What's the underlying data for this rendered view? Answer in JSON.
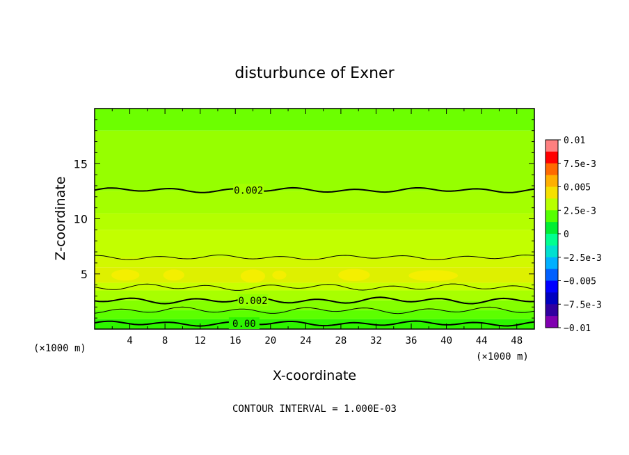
{
  "chart_data": {
    "type": "contour",
    "title": "disturbunce of Exner",
    "xlabel": "X-coordinate",
    "ylabel": "Z-coordinate",
    "x_unit": "(×1000 m)",
    "x_unit_right": "(×1000 m)",
    "xlim": [
      0,
      50
    ],
    "ylim": [
      0,
      20
    ],
    "x_ticks": [
      "4",
      "8",
      "12",
      "16",
      "20",
      "24",
      "28",
      "32",
      "36",
      "40",
      "44",
      "48"
    ],
    "y_ticks": [
      "5",
      "10",
      "15"
    ],
    "colorbar": {
      "labels": [
        "0.01",
        "7.5e-3",
        "0.005",
        "2.5e-3",
        "0",
        "−2.5e-3",
        "−0.005",
        "−7.5e-3",
        "−0.01"
      ],
      "colors": [
        "#ff8080",
        "#ff0000",
        "#ff6a00",
        "#ffb000",
        "#f5e000",
        "#b8ff00",
        "#55ff00",
        "#00ee33",
        "#00ff90",
        "#00e0d0",
        "#00b0ff",
        "#0060ff",
        "#0000ff",
        "#0000c0",
        "#3000a0",
        "#8000b0"
      ]
    },
    "contour_labels": [
      "0.002",
      "0.002",
      "0.00"
    ],
    "contour_interval_text": "CONTOUR INTERVAL = 1.000E-03",
    "bands": [
      {
        "z_bottom": 18,
        "z_top": 20,
        "color": "#6cff00"
      },
      {
        "z_bottom": 12.5,
        "z_top": 18,
        "color": "#96ff00"
      },
      {
        "z_bottom": 10.5,
        "z_top": 12.5,
        "color": "#a4ff00"
      },
      {
        "z_bottom": 9.0,
        "z_top": 10.5,
        "color": "#b4ff00"
      },
      {
        "z_bottom": 6.5,
        "z_top": 9.0,
        "color": "#c2ff00"
      },
      {
        "z_bottom": 5.6,
        "z_top": 6.5,
        "color": "#d2f800"
      },
      {
        "z_bottom": 4.2,
        "z_top": 5.6,
        "color": "#def000"
      },
      {
        "z_bottom": 3.5,
        "z_top": 4.2,
        "color": "#c8ff00"
      },
      {
        "z_bottom": 2.6,
        "z_top": 3.5,
        "color": "#a8ff00"
      },
      {
        "z_bottom": 1.7,
        "z_top": 2.6,
        "color": "#84ff00"
      },
      {
        "z_bottom": 0.9,
        "z_top": 1.7,
        "color": "#5cff00"
      },
      {
        "z_bottom": 0.0,
        "z_top": 0.9,
        "color": "#2ef400"
      }
    ],
    "blobs": [
      {
        "x": 3.5,
        "z": 4.9,
        "rx": 1.6,
        "rz": 0.5
      },
      {
        "x": 9.0,
        "z": 4.9,
        "rx": 1.2,
        "rz": 0.5
      },
      {
        "x": 18.0,
        "z": 4.8,
        "rx": 1.4,
        "rz": 0.6
      },
      {
        "x": 21.0,
        "z": 4.9,
        "rx": 0.8,
        "rz": 0.4
      },
      {
        "x": 29.5,
        "z": 4.9,
        "rx": 1.8,
        "rz": 0.55
      },
      {
        "x": 38.5,
        "z": 4.85,
        "rx": 2.8,
        "rz": 0.5
      }
    ],
    "contours": [
      {
        "z": 12.6,
        "amp": 0.15,
        "bold": true
      },
      {
        "z": 6.5,
        "amp": 0.15,
        "bold": false
      },
      {
        "z": 3.8,
        "amp": 0.2,
        "bold": false
      },
      {
        "z": 2.6,
        "amp": 0.2,
        "bold": true
      },
      {
        "z": 1.7,
        "amp": 0.2,
        "bold": false
      },
      {
        "z": 0.5,
        "amp": 0.15,
        "bold": true
      }
    ]
  }
}
